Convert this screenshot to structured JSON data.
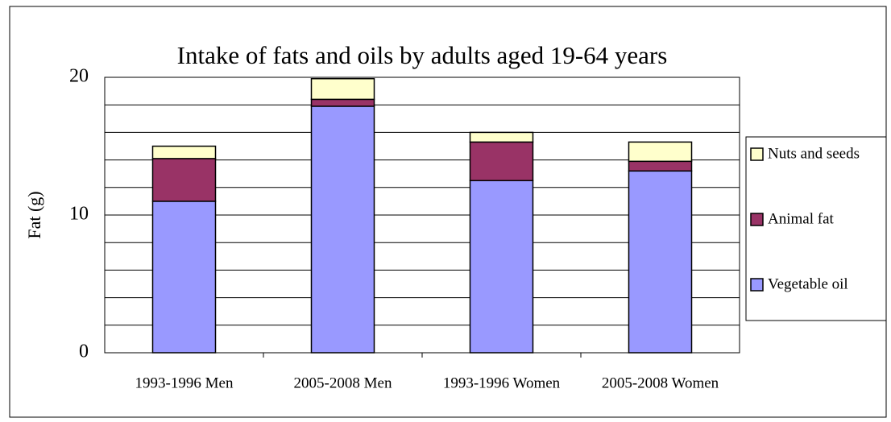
{
  "chart_data": {
    "type": "stacked_bar",
    "title": "Intake of fats and oils by adults aged 19-64 years",
    "y_label": "Fat (g)",
    "categories": [
      "1993-1996 Men",
      "2005-2008 Men",
      "1993-1996 Women",
      "2005-2008 Women"
    ],
    "series": [
      {
        "name": "Vegetable oil",
        "color": "#9999ff",
        "values": [
          11.0,
          17.9,
          12.5,
          13.2
        ]
      },
      {
        "name": "Animal fat",
        "color": "#993366",
        "values": [
          3.1,
          0.5,
          2.8,
          0.7
        ]
      },
      {
        "name": "Nuts and seeds",
        "color": "#ffffcc",
        "values": [
          0.9,
          1.5,
          0.7,
          1.4
        ]
      }
    ],
    "ylim": [
      0,
      20
    ],
    "yticks": [
      0,
      10,
      20
    ],
    "minor_yticks": [
      2,
      4,
      6,
      8,
      12,
      14,
      16,
      18
    ],
    "grid": true,
    "legend": "right"
  }
}
